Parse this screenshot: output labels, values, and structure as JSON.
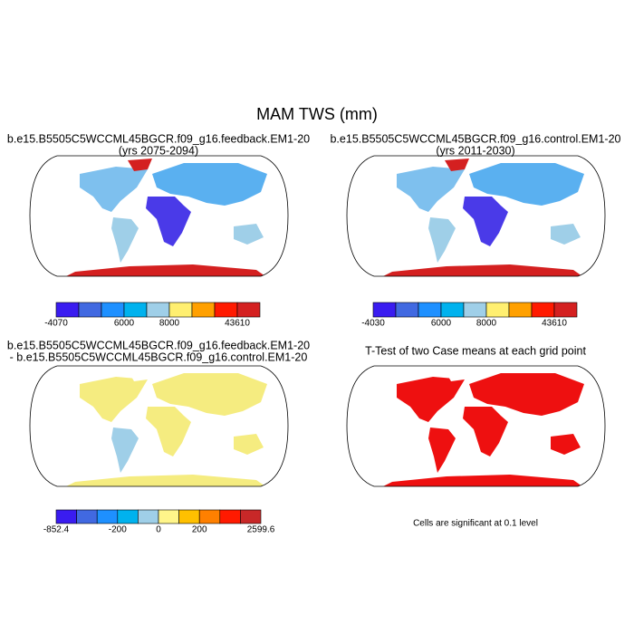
{
  "title": "MAM TWS (mm)",
  "panels": [
    {
      "title": [
        "b.e15.B5505C5WCCML45BGCR.f09_g16.feedback.EM1-20",
        "(yrs 2075-2094)"
      ],
      "colorbar": {
        "colors": [
          "#3a1cf0",
          "#4169e1",
          "#1e90ff",
          "#00b2ee",
          "#9fcfe8",
          "#ffef70",
          "#ffa000",
          "#ff1a00",
          "#d42020"
        ],
        "labels": [
          -4070,
          null,
          null,
          6000,
          null,
          8000,
          null,
          null,
          43610
        ]
      }
    },
    {
      "title": [
        "b.e15.B5505C5WCCML45BGCR.f09_g16.control.EM1-20",
        "(yrs 2011-2030)"
      ],
      "colorbar": {
        "colors": [
          "#3a1cf0",
          "#4169e1",
          "#1e90ff",
          "#00b2ee",
          "#9fcfe8",
          "#ffef70",
          "#ffa000",
          "#ff1a00",
          "#d42020"
        ],
        "labels": [
          -4030,
          null,
          null,
          6000,
          null,
          8000,
          null,
          null,
          43610
        ]
      }
    },
    {
      "title": [
        "b.e15.B5505C5WCCML45BGCR.f09_g16.feedback.EM1-20",
        "- b.e15.B5505C5WCCML45BGCR.f09_g16.control.EM1-20"
      ],
      "colorbar": {
        "colors": [
          "#3a1cf0",
          "#4169e1",
          "#1e90ff",
          "#00b2ee",
          "#9fcfe8",
          "#fff58a",
          "#ffc000",
          "#ff8000",
          "#ff1a00",
          "#c82828"
        ],
        "labels": [
          -852.4,
          null,
          null,
          -200,
          null,
          0,
          null,
          200,
          null,
          null,
          2599.6
        ]
      }
    },
    {
      "title": [
        "T-Test of two Case means at each grid point"
      ],
      "note": "Cells are significant at 0.1 level"
    }
  ]
}
